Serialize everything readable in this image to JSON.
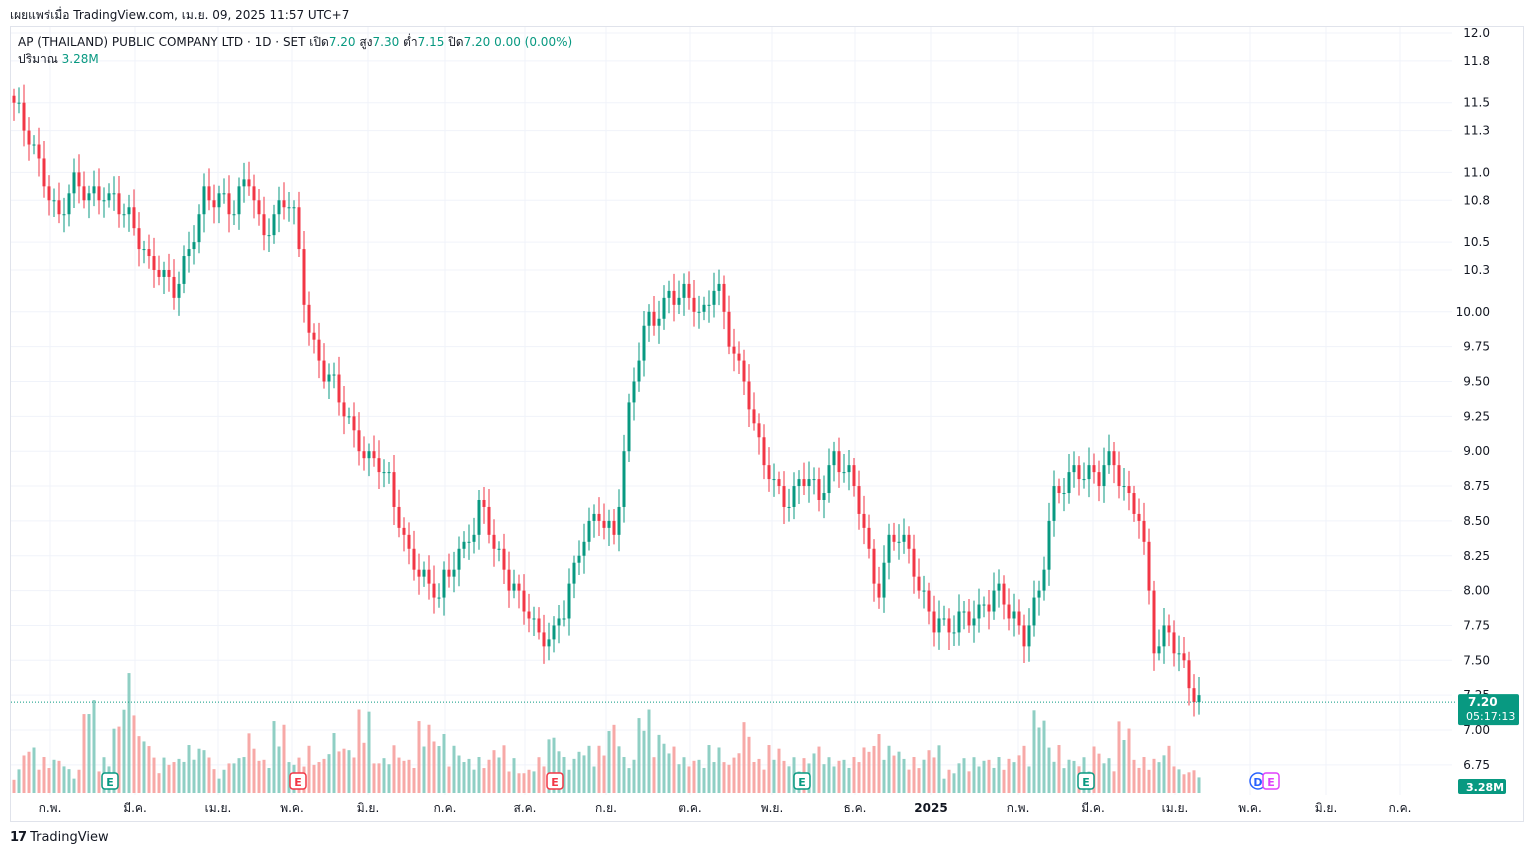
{
  "header": {
    "published": "เผยแพร่เมื่อ TradingView.com, เม.ย. 09, 2025 11:57 UTC+7"
  },
  "legend": {
    "title": "AP (THAILAND) PUBLIC COMPANY LTD · 1D · SET",
    "open_label": "เปิด",
    "open_value": "7.20",
    "high_label": "สูง",
    "high_value": "7.30",
    "low_label": "ต่ำ",
    "low_value": "7.15",
    "close_label": "ปิด",
    "close_value": "7.20",
    "change": "0.00 (0.00%)",
    "volume_label": "ปริมาณ",
    "volume_value": "3.28M"
  },
  "price_tag": {
    "price": "7.20",
    "countdown": "05:17:13"
  },
  "volume_tag": "3.28M",
  "footer": {
    "brand": "TradingView",
    "logo_glyph": "17"
  },
  "colors": {
    "up": "#089981",
    "down": "#f23645",
    "up_vol": "#8fcfc4",
    "down_vol": "#f7a9a7",
    "grid": "#f0f3fa",
    "axis_text": "#131722"
  },
  "chart_data": {
    "type": "candlestick",
    "y_axis": {
      "ticks": [
        "12.0",
        "11.8",
        "11.5",
        "11.3",
        "11.0",
        "10.8",
        "10.5",
        "10.3",
        "10.00",
        "9.75",
        "9.50",
        "9.25",
        "9.00",
        "8.75",
        "8.50",
        "8.25",
        "8.00",
        "7.75",
        "7.50",
        "7.25",
        "7.00",
        "6.75"
      ],
      "range": [
        6.6,
        12.05
      ]
    },
    "x_axis": {
      "ticks": [
        "ก.พ.",
        "มี.ค.",
        "เม.ย.",
        "พ.ค.",
        "มิ.ย.",
        "ก.ค.",
        "ส.ค.",
        "ก.ย.",
        "ต.ค.",
        "พ.ย.",
        "ธ.ค.",
        "2025",
        "ก.พ.",
        "มี.ค.",
        "เม.ย.",
        "พ.ค.",
        "มิ.ย.",
        "ก.ค."
      ]
    },
    "last_price": 7.2,
    "earnings_markers": [
      {
        "label": "E",
        "type": "positive"
      },
      {
        "label": "E",
        "type": "negative"
      },
      {
        "label": "E",
        "type": "negative"
      },
      {
        "label": "E",
        "type": "positive"
      },
      {
        "label": "E",
        "type": "positive"
      },
      {
        "label": "D",
        "type": "dividend"
      },
      {
        "label": "E",
        "type": "upcoming"
      }
    ],
    "close_waypoints": [
      11.5,
      11.2,
      11.0,
      10.7,
      10.9,
      10.8,
      10.9,
      10.8,
      10.6,
      10.4,
      10.35,
      10.1,
      10.4,
      10.9,
      10.8,
      10.7,
      11.0,
      10.6,
      10.7,
      10.8,
      10.0,
      9.6,
      9.4,
      9.2,
      9.0,
      8.9,
      8.6,
      8.3,
      8.1,
      7.9,
      8.2,
      8.4,
      8.6,
      8.2,
      8.1,
      7.9,
      7.6,
      7.7,
      8.1,
      8.4,
      8.5,
      8.4,
      9.3,
      9.8,
      10.0,
      10.2,
      10.1,
      9.9,
      10.3,
      9.8,
      9.4,
      9.0,
      8.8,
      8.6,
      8.8,
      8.7,
      9.0,
      8.8,
      8.5,
      8.0,
      8.4,
      8.3,
      8.0,
      7.8,
      7.7,
      7.8,
      7.9,
      8.0,
      7.8,
      7.7,
      8.0,
      8.6,
      8.8,
      8.9,
      8.8,
      8.9,
      8.7,
      8.6,
      7.5,
      7.7,
      7.5,
      7.2
    ],
    "volume_level": [
      0.2,
      0.4,
      0.3,
      0.3,
      0.2,
      0.8,
      0.3,
      0.6,
      1.0,
      0.5,
      0.3,
      0.3,
      0.4,
      0.4,
      0.2,
      0.3,
      0.5,
      0.3,
      0.6,
      0.3,
      0.4,
      0.3,
      0.5,
      0.4,
      0.7,
      0.3,
      0.4,
      0.3,
      0.6,
      0.5,
      0.4,
      0.3,
      0.3,
      0.4,
      0.3,
      0.2,
      0.3,
      0.5,
      0.3,
      0.4,
      0.4,
      0.6,
      0.3,
      0.7,
      0.5,
      0.4,
      0.3,
      0.3,
      0.4,
      0.3,
      0.6,
      0.3,
      0.4,
      0.3,
      0.3,
      0.4,
      0.3,
      0.3,
      0.4,
      0.5,
      0.4,
      0.3,
      0.3,
      0.4,
      0.2,
      0.3,
      0.3,
      0.3,
      0.3,
      0.4,
      0.7,
      0.4,
      0.3,
      0.3,
      0.4,
      0.3,
      0.6,
      0.3,
      0.3,
      0.4,
      0.2,
      0.2
    ],
    "grid": true
  }
}
